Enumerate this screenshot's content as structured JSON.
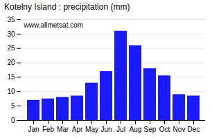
{
  "chart_data": {
    "type": "bar",
    "title": "Kotelny Island : precipitation (mm)",
    "categories": [
      "Jan",
      "Feb",
      "Mar",
      "Apr",
      "May",
      "Jun",
      "Jul",
      "Aug",
      "Sep",
      "Oct",
      "Nov",
      "Dec"
    ],
    "values": [
      7,
      7.5,
      8,
      8.5,
      13,
      17,
      31,
      26,
      18,
      15.5,
      9,
      8.5
    ],
    "color": "#1a1aff",
    "ylim": [
      0,
      35
    ],
    "yticks": [
      0,
      5,
      10,
      15,
      20,
      25,
      30,
      35
    ],
    "grid": true,
    "annotations": [
      "www.allmetsat.com"
    ]
  }
}
